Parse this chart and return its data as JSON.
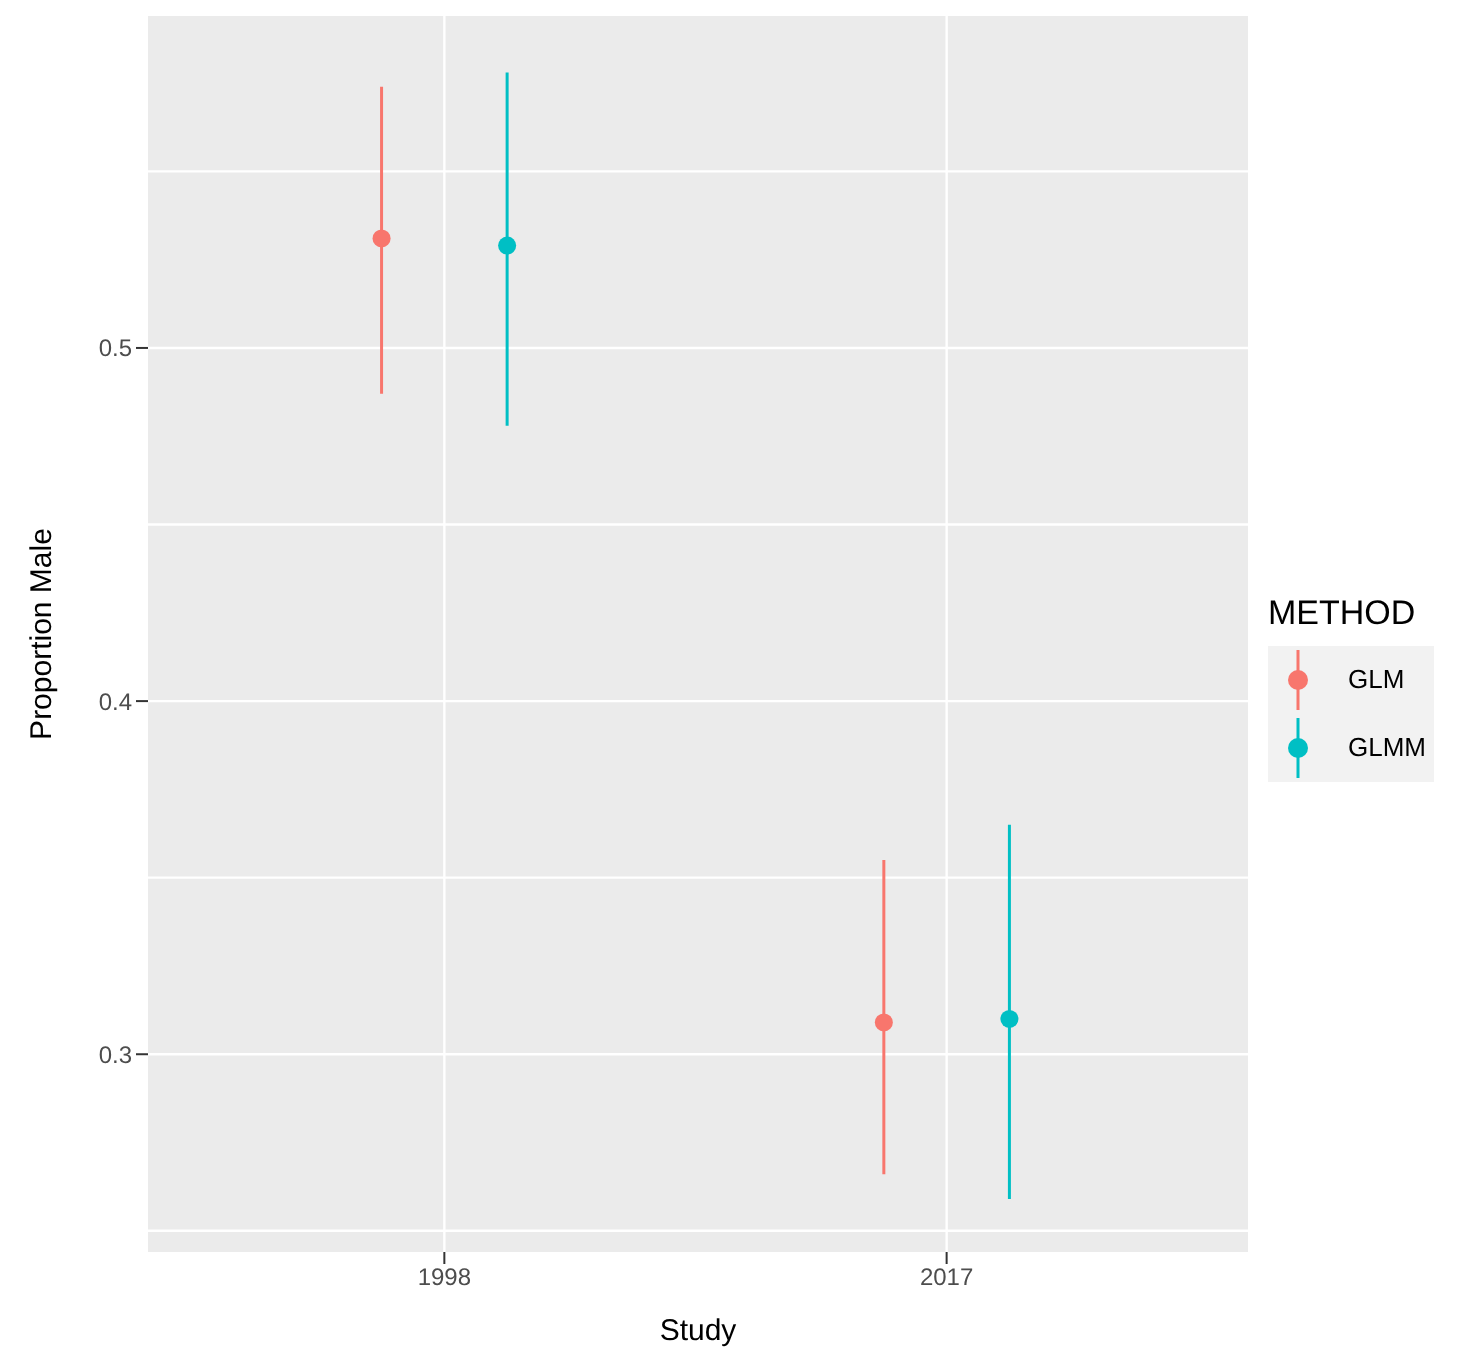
{
  "chart_data": {
    "type": "scatter",
    "xlabel": "Study",
    "ylabel": "Proportion Male",
    "legend_title": "METHOD",
    "categories": [
      "1998",
      "2017"
    ],
    "series": [
      {
        "name": "GLM",
        "color": "#f8766d",
        "values": [
          0.531,
          0.309
        ],
        "errors": [
          [
            0.487,
            0.574
          ],
          [
            0.266,
            0.355
          ]
        ]
      },
      {
        "name": "GLMM",
        "color": "#00bfc4",
        "values": [
          0.529,
          0.31
        ],
        "errors": [
          [
            0.478,
            0.578
          ],
          [
            0.259,
            0.365
          ]
        ]
      }
    ],
    "ylim": [
      0.244,
      0.594
    ],
    "yticks": [
      0.3,
      0.4,
      0.5
    ],
    "grid": true,
    "legend": "right",
    "marker": "circle"
  }
}
